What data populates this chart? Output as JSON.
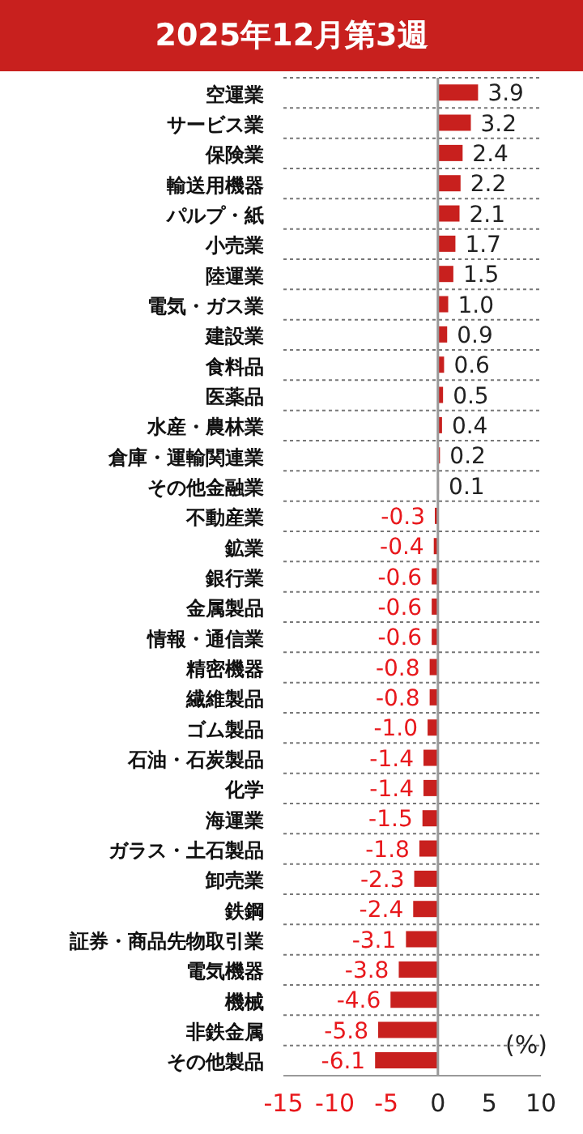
{
  "chart_data": {
    "type": "bar",
    "orientation": "horizontal",
    "title": "2025年12月第3週",
    "xlabel": "(%)",
    "categories": [
      "空運業",
      "サービス業",
      "保険業",
      "輸送用機器",
      "パルプ・紙",
      "小売業",
      "陸運業",
      "電気・ガス業",
      "建設業",
      "食料品",
      "医薬品",
      "水産・農林業",
      "倉庫・運輸関連業",
      "その他金融業",
      "不動産業",
      "鉱業",
      "銀行業",
      "金属製品",
      "情報・通信業",
      "精密機器",
      "繊維製品",
      "ゴム製品",
      "石油・石炭製品",
      "化学",
      "海運業",
      "ガラス・土石製品",
      "卸売業",
      "鉄鋼",
      "証券・商品先物取引業",
      "電気機器",
      "機械",
      "非鉄金属",
      "その他製品"
    ],
    "values": [
      3.9,
      3.2,
      2.4,
      2.2,
      2.1,
      1.7,
      1.5,
      1.0,
      0.9,
      0.6,
      0.5,
      0.4,
      0.2,
      0.1,
      -0.3,
      -0.4,
      -0.6,
      -0.6,
      -0.6,
      -0.8,
      -0.8,
      -1.0,
      -1.4,
      -1.4,
      -1.5,
      -1.8,
      -2.3,
      -2.4,
      -3.1,
      -3.8,
      -4.6,
      -5.8,
      -6.1
    ],
    "value_labels": [
      "3.9",
      "3.2",
      "2.4",
      "2.2",
      "2.1",
      "1.7",
      "1.5",
      "1.0",
      "0.9",
      "0.6",
      "0.5",
      "0.4",
      "0.2",
      "0.1",
      "-0.3",
      "-0.4",
      "-0.6",
      "-0.6",
      "-0.6",
      "-0.8",
      "-0.8",
      "-1.0",
      "-1.4",
      "-1.4",
      "-1.5",
      "-1.8",
      "-2.3",
      "-2.4",
      "-3.1",
      "-3.8",
      "-4.6",
      "-5.8",
      "-6.1"
    ],
    "color": "#c8201e",
    "xlim": [
      -15,
      10
    ],
    "xticks": [
      -15,
      -10,
      -5,
      0,
      5,
      10
    ],
    "grid": "y"
  }
}
